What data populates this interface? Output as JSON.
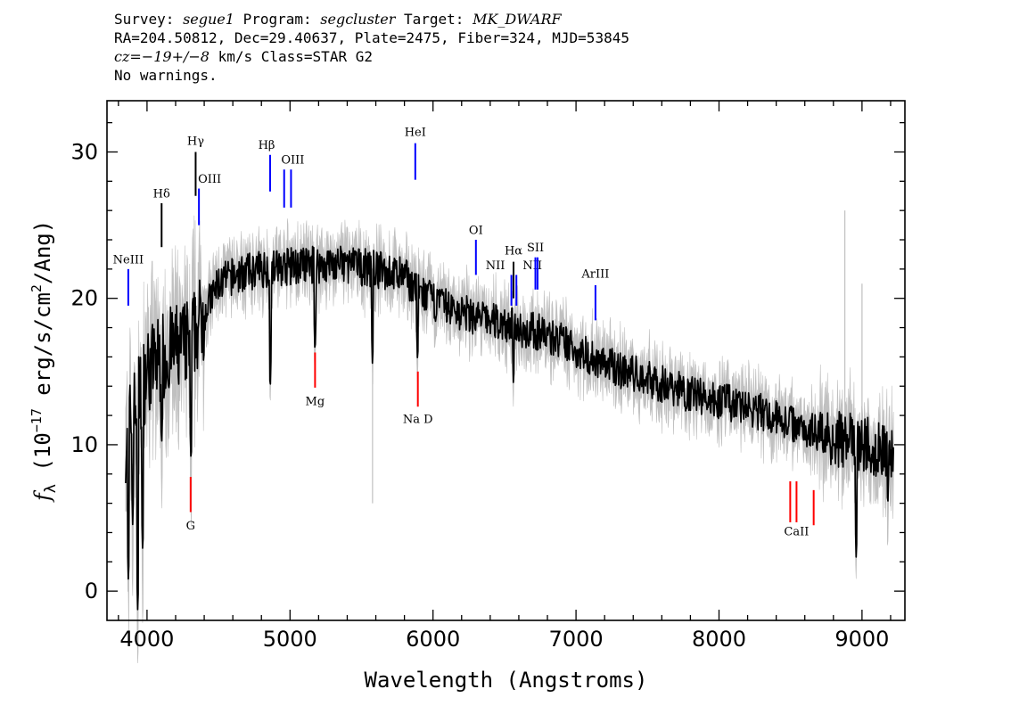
{
  "header": {
    "survey_label": "Survey:",
    "survey": "segue1",
    "program_label": "Program:",
    "program": "segcluster",
    "target_label": "Target:",
    "target": "MK_DWARF",
    "line2": "RA=204.50812, Dec=29.40637, Plate=2475, Fiber=324, MJD=53845",
    "cz_label": "cz=",
    "cz_value": "−19+/−8",
    "cz_rest": " km/s Class=STAR G2",
    "line4": "No warnings."
  },
  "chart_data": {
    "type": "line",
    "xlabel": "Wavelength (Angstroms)",
    "ylabel_main": "f",
    "ylabel_sub": "λ",
    "ylabel_rest": " (10",
    "ylabel_exp": "−17",
    "ylabel_rest2": " erg/s/cm",
    "ylabel_exp2": "2",
    "ylabel_end": "/Ang)",
    "xlim": [
      3720,
      9300
    ],
    "ylim": [
      -2,
      33.5
    ],
    "xticks": [
      4000,
      5000,
      6000,
      7000,
      8000,
      9000
    ],
    "yticks": [
      0,
      10,
      20,
      30
    ],
    "colors": {
      "flux": "#000000",
      "error_band": "#c0c0c0",
      "emission": "#0000ff",
      "absorption": "#ff0000",
      "balmer": "#000000"
    },
    "flux_anchors": {
      "x": [
        3850,
        3900,
        4000,
        4100,
        4200,
        4300,
        4400,
        4500,
        4600,
        4800,
        5000,
        5200,
        5400,
        5600,
        5800,
        5900,
        6000,
        6200,
        6400,
        6600,
        6800,
        7000,
        7200,
        7500,
        7800,
        8000,
        8200,
        8500,
        8800,
        9000,
        9100,
        9220
      ],
      "y": [
        10.5,
        12,
        15,
        16,
        16.5,
        17,
        19,
        21,
        21.5,
        22,
        22.2,
        22.3,
        22.3,
        22,
        21.5,
        20.5,
        19.8,
        19,
        18.5,
        18,
        17.5,
        16.5,
        15.5,
        14.5,
        13.5,
        13,
        12.5,
        11.5,
        10.5,
        10,
        9.8,
        9.5
      ]
    },
    "absorption_features": [
      {
        "x": 3870,
        "y": 0.5
      },
      {
        "x": 3900,
        "y": 4.5
      },
      {
        "x": 3935,
        "y": -1.5
      },
      {
        "x": 3970,
        "y": 2.5
      },
      {
        "x": 4102,
        "y": 9.8
      },
      {
        "x": 4308,
        "y": 8.6
      },
      {
        "x": 4861,
        "y": 13.5
      },
      {
        "x": 5175,
        "y": 16.0
      },
      {
        "x": 5577,
        "y": 15.2
      },
      {
        "x": 5892,
        "y": 15.4
      },
      {
        "x": 6563,
        "y": 13.8
      },
      {
        "x": 8960,
        "y": 2.0
      },
      {
        "x": 9180,
        "y": 5.5
      }
    ],
    "noise_amplitude": 1.3,
    "spectral_lines": [
      {
        "label": "NeIII",
        "wave": 3869,
        "y1": 19.5,
        "y2": 22.0,
        "label_y": 22.4,
        "kind": "emission",
        "label_dx": 0
      },
      {
        "label": "Hδ",
        "wave": 4102,
        "y1": 23.5,
        "y2": 26.5,
        "label_y": 26.9,
        "kind": "balmer",
        "label_dx": 0
      },
      {
        "label": "Hγ",
        "wave": 4340,
        "y1": 27.0,
        "y2": 30.0,
        "label_y": 30.5,
        "kind": "balmer",
        "label_dx": 0
      },
      {
        "label": "OIII",
        "wave": 4363,
        "y1": 25.0,
        "y2": 27.5,
        "label_y": 27.9,
        "kind": "emission",
        "label_dx": 12
      },
      {
        "label": "Hβ",
        "wave": 4861,
        "y1": 27.3,
        "y2": 29.8,
        "label_y": 30.2,
        "kind": "emission",
        "label_dx": -4
      },
      {
        "label": "",
        "wave": 4959,
        "y1": 26.2,
        "y2": 28.8,
        "label_y": 0,
        "kind": "emission",
        "label_dx": 0
      },
      {
        "label": "OIII",
        "wave": 5007,
        "y1": 26.2,
        "y2": 28.8,
        "label_y": 29.2,
        "kind": "emission",
        "label_dx": 2
      },
      {
        "label": "HeI",
        "wave": 5876,
        "y1": 28.1,
        "y2": 30.6,
        "label_y": 31.1,
        "kind": "emission",
        "label_dx": 0
      },
      {
        "label": "OI",
        "wave": 6300,
        "y1": 21.6,
        "y2": 24.0,
        "label_y": 24.4,
        "kind": "emission",
        "label_dx": 0
      },
      {
        "label": "NII",
        "wave": 6548,
        "y1": 19.5,
        "y2": 21.6,
        "label_y": 22.0,
        "kind": "emission",
        "label_dx": -18
      },
      {
        "label": "Hα",
        "wave": 6563,
        "y1": 20.0,
        "y2": 22.5,
        "label_y": 23.0,
        "kind": "balmer",
        "label_dx": 0
      },
      {
        "label": "NII",
        "wave": 6583,
        "y1": 19.5,
        "y2": 21.6,
        "label_y": 22.0,
        "kind": "emission",
        "label_dx": 18
      },
      {
        "label": "SII",
        "wave": 6716,
        "y1": 20.6,
        "y2": 22.8,
        "label_y": 23.2,
        "kind": "emission",
        "label_dx": 0
      },
      {
        "label": "",
        "wave": 6731,
        "y1": 20.6,
        "y2": 22.8,
        "label_y": 0,
        "kind": "emission",
        "label_dx": 0
      },
      {
        "label": "ArIII",
        "wave": 7136,
        "y1": 18.5,
        "y2": 20.9,
        "label_y": 21.4,
        "kind": "emission",
        "label_dx": 0
      },
      {
        "label": "G",
        "wave": 4305,
        "y1": 5.4,
        "y2": 7.8,
        "label_y": 4.2,
        "kind": "absorption",
        "label_dx": 0
      },
      {
        "label": "Mg",
        "wave": 5175,
        "y1": 13.9,
        "y2": 16.3,
        "label_y": 12.7,
        "kind": "absorption",
        "label_dx": 0
      },
      {
        "label": "Na D",
        "wave": 5894,
        "y1": 12.6,
        "y2": 15.0,
        "label_y": 11.5,
        "kind": "absorption",
        "label_dx": 0
      },
      {
        "label": "",
        "wave": 8498,
        "y1": 4.7,
        "y2": 7.5,
        "label_y": 0,
        "kind": "absorption",
        "label_dx": 0
      },
      {
        "label": "CaII",
        "wave": 8542,
        "y1": 4.7,
        "y2": 7.5,
        "label_y": 3.8,
        "kind": "absorption",
        "label_dx": 0
      },
      {
        "label": "",
        "wave": 8662,
        "y1": 4.5,
        "y2": 6.9,
        "label_y": 0,
        "kind": "absorption",
        "label_dx": 0
      }
    ]
  }
}
